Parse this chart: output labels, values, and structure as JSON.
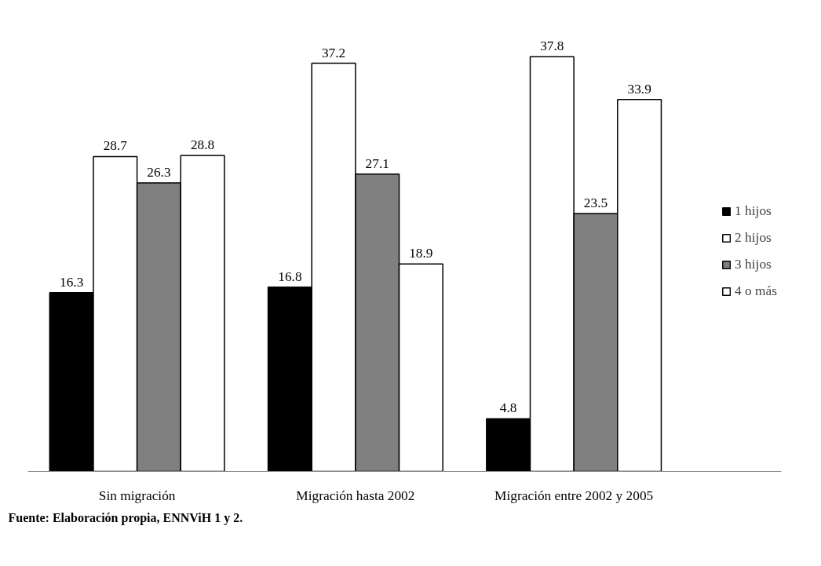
{
  "chart_data": {
    "type": "bar",
    "categories": [
      "Sin migración",
      "Migración hasta 2002",
      "Migración entre 2002 y 2005"
    ],
    "series": [
      {
        "name": "1 hijos",
        "color": "#000000",
        "values": [
          16.3,
          16.8,
          4.8
        ]
      },
      {
        "name": "2 hijos",
        "color": "#ffffff",
        "values": [
          28.7,
          37.2,
          37.8
        ]
      },
      {
        "name": "3 hijos",
        "color": "#808080",
        "values": [
          26.3,
          27.1,
          23.5
        ]
      },
      {
        "name": "4 o más",
        "color": "#ffffff",
        "values": [
          28.8,
          18.9,
          33.9
        ]
      }
    ],
    "tick_labels": "x",
    "data_labels": true,
    "legend": "right",
    "grid": false,
    "annotations": [
      "Fuente: Elaboración propia, ENNViH 1 y 2."
    ]
  }
}
